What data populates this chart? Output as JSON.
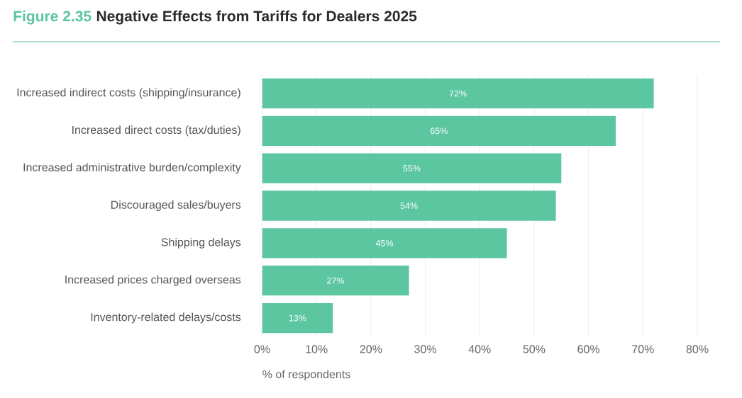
{
  "chart_data": {
    "type": "bar",
    "orientation": "horizontal",
    "annotations": [
      "Figure 2.35"
    ],
    "title": "Negative Effects from Tariffs for Dealers 2025",
    "categories": [
      "Increased indirect costs (shipping/insurance)",
      "Increased direct costs (tax/duties)",
      "Increased administrative burden/complexity",
      "Discouraged sales/buyers",
      "Shipping delays",
      "Increased prices charged overseas",
      "Inventory-related delays/costs"
    ],
    "values": [
      72,
      65,
      55,
      54,
      45,
      27,
      13
    ],
    "value_labels": [
      "72%",
      "65%",
      "55%",
      "54%",
      "45%",
      "27%",
      "13%"
    ],
    "color": "#5cc6a0",
    "xlabel": "% of respondents",
    "xlim": [
      0,
      80
    ],
    "xticks": [
      {
        "value": 0,
        "label": "0%"
      },
      {
        "value": 10,
        "label": "10%"
      },
      {
        "value": 20,
        "label": "20%"
      },
      {
        "value": 30,
        "label": "30%"
      },
      {
        "value": 40,
        "label": "40%"
      },
      {
        "value": 50,
        "label": "50%"
      },
      {
        "value": 60,
        "label": "60%"
      },
      {
        "value": 70,
        "label": "70%"
      },
      {
        "value": 80,
        "label": "80%"
      }
    ],
    "grid": "x"
  }
}
